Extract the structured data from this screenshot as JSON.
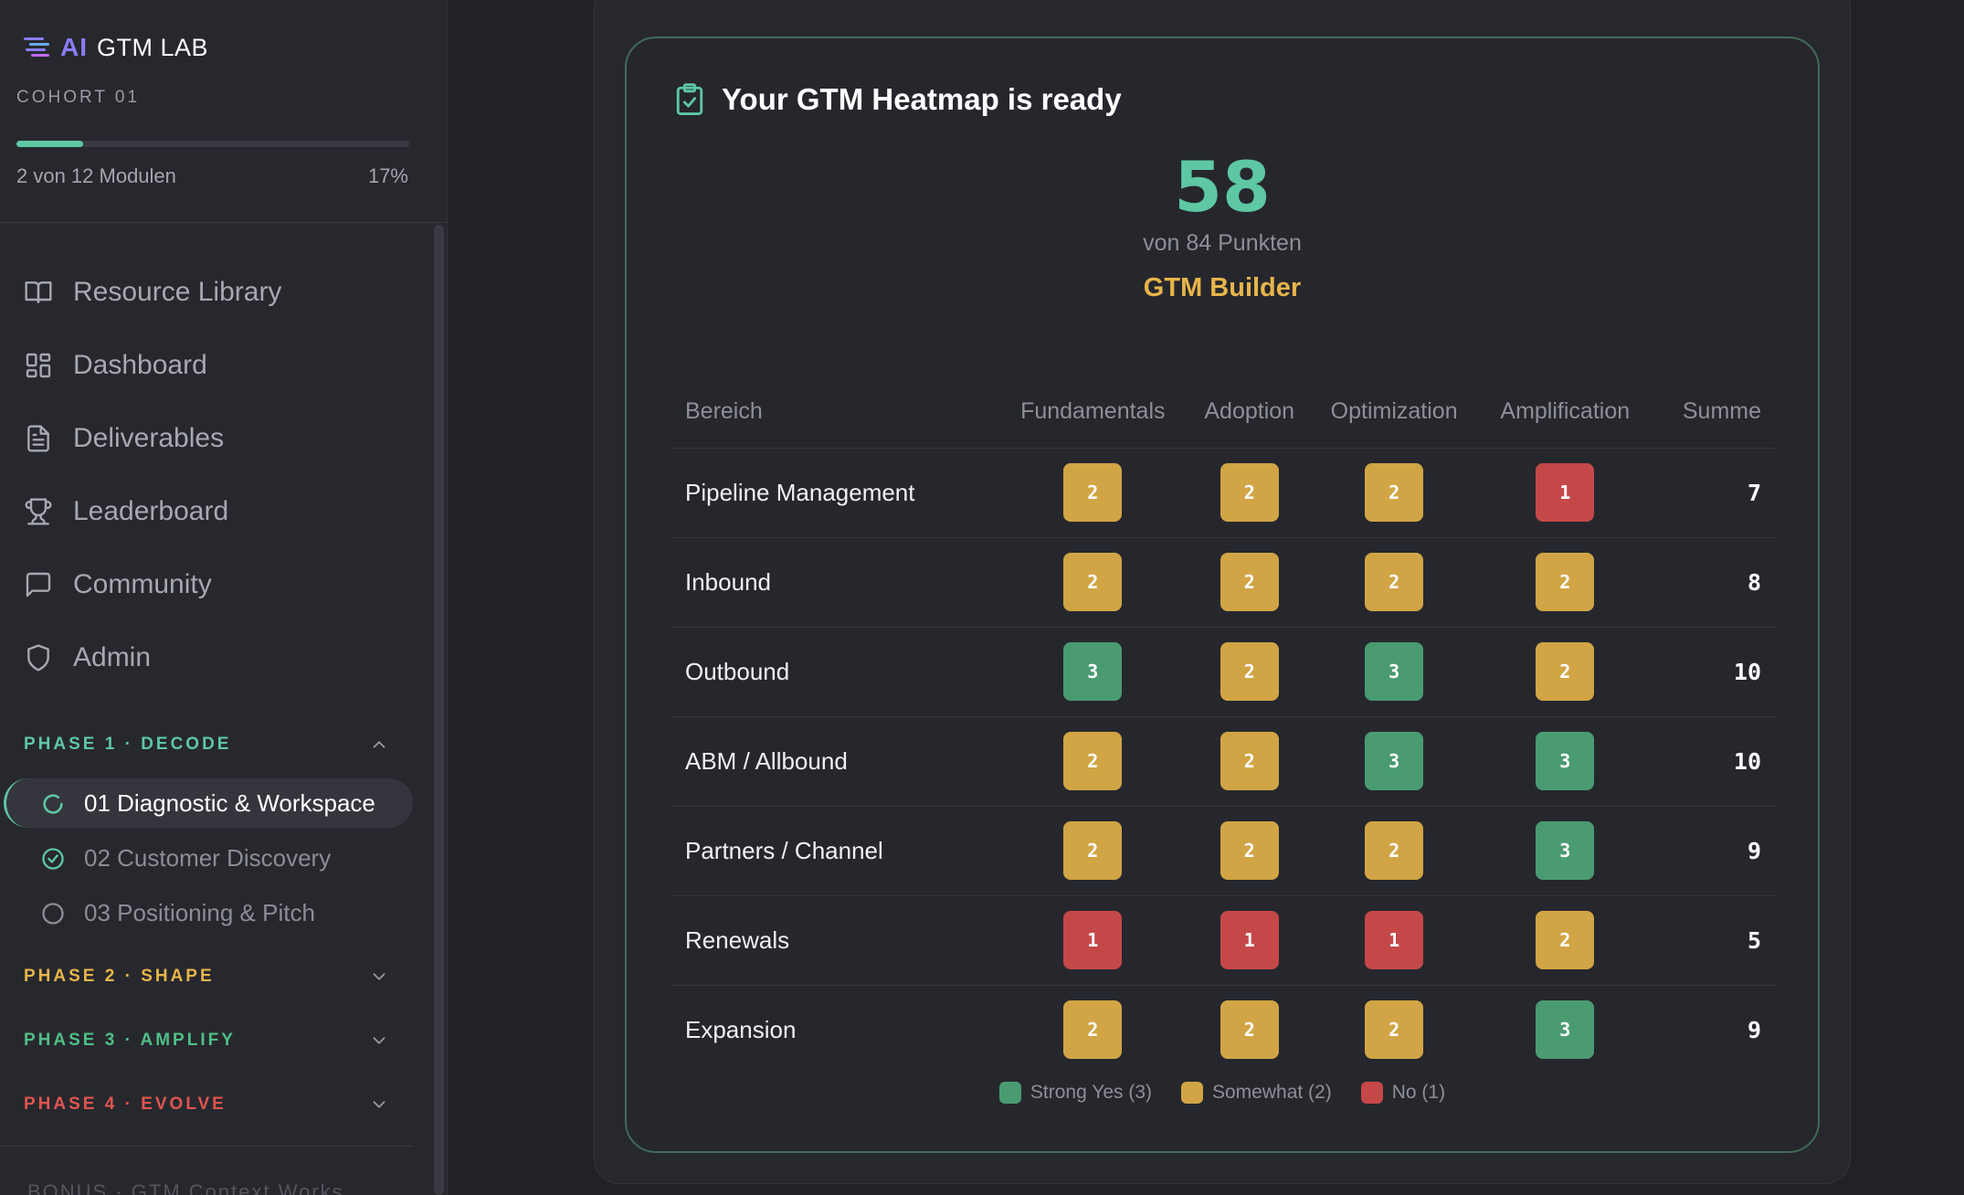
{
  "brand": {
    "ai": "AI",
    "name": "GTM LAB"
  },
  "cohort": "COHORT 01",
  "progress": {
    "label": "2 von 12 Modulen",
    "percent_label": "17%",
    "fraction": 0.17
  },
  "nav": [
    {
      "label": "Resource Library",
      "icon": "book-icon"
    },
    {
      "label": "Dashboard",
      "icon": "dashboard-icon"
    },
    {
      "label": "Deliverables",
      "icon": "document-icon"
    },
    {
      "label": "Leaderboard",
      "icon": "trophy-icon"
    },
    {
      "label": "Community",
      "icon": "chat-icon"
    },
    {
      "label": "Admin",
      "icon": "shield-icon"
    }
  ],
  "phases": [
    {
      "label": "PHASE 1 · DECODE",
      "color": "#5ec7a4",
      "expanded": true
    },
    {
      "label": "PHASE 2 · SHAPE",
      "color": "#e7b54a",
      "expanded": false
    },
    {
      "label": "PHASE 3 · AMPLIFY",
      "color": "#4fbf86",
      "expanded": false
    },
    {
      "label": "PHASE 4 · EVOLVE",
      "color": "#e0554f",
      "expanded": false
    }
  ],
  "modules": [
    {
      "label": "01 Diagnostic & Workspace",
      "status": "in-progress"
    },
    {
      "label": "02 Customer Discovery",
      "status": "done"
    },
    {
      "label": "03 Positioning & Pitch",
      "status": "open"
    }
  ],
  "bonus": "BONUS · GTM Context Works",
  "card": {
    "title": "Your GTM Heatmap is ready",
    "score": "58",
    "score_sub": "von 84 Punkten",
    "level": "GTM Builder"
  },
  "table": {
    "headers": [
      "Bereich",
      "Fundamentals",
      "Adoption",
      "Optimization",
      "Amplification",
      "Summe"
    ],
    "rows": [
      {
        "area": "Pipeline Management",
        "values": [
          "2",
          "2",
          "2",
          "1"
        ],
        "sum": "7"
      },
      {
        "area": "Inbound",
        "values": [
          "2",
          "2",
          "2",
          "2"
        ],
        "sum": "8"
      },
      {
        "area": "Outbound",
        "values": [
          "3",
          "2",
          "3",
          "2"
        ],
        "sum": "10"
      },
      {
        "area": "ABM / Allbound",
        "values": [
          "2",
          "2",
          "3",
          "3"
        ],
        "sum": "10"
      },
      {
        "area": "Partners / Channel",
        "values": [
          "2",
          "2",
          "2",
          "3"
        ],
        "sum": "9"
      },
      {
        "area": "Renewals",
        "values": [
          "1",
          "1",
          "1",
          "2"
        ],
        "sum": "5"
      },
      {
        "area": "Expansion",
        "values": [
          "2",
          "2",
          "2",
          "3"
        ],
        "sum": "9"
      }
    ]
  },
  "legend": [
    {
      "label": "Strong Yes (3)",
      "color": "#4a9b72"
    },
    {
      "label": "Somewhat (2)",
      "color": "#d1a545"
    },
    {
      "label": "No (1)",
      "color": "#c54848"
    }
  ]
}
